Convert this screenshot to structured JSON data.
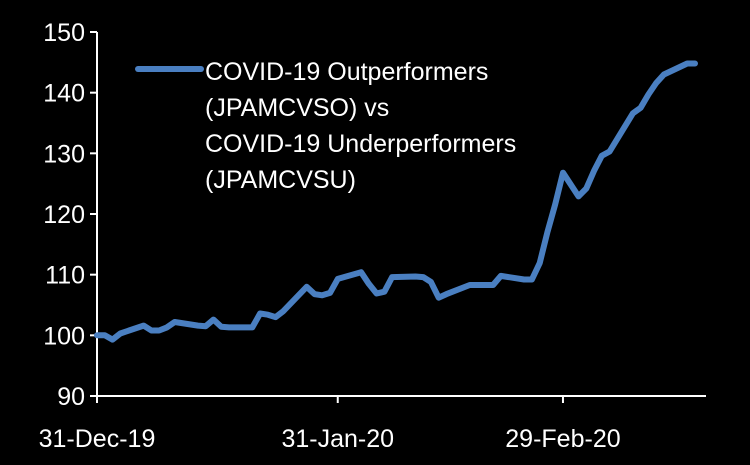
{
  "chart_data": {
    "type": "line",
    "title": "",
    "xlabel": "",
    "ylabel": "",
    "ylim": [
      90,
      150
    ],
    "y_ticks": [
      90,
      100,
      110,
      120,
      130,
      140,
      150
    ],
    "xlim": [
      "2019-12-31",
      "2020-03-17"
    ],
    "x_ticks": [
      {
        "date": "2019-12-31",
        "label": "31-Dec-19"
      },
      {
        "date": "2020-01-31",
        "label": "31-Jan-20"
      },
      {
        "date": "2020-02-29",
        "label": "29-Feb-20"
      }
    ],
    "grid": false,
    "legend": {
      "position": "top-left",
      "lines": [
        "COVID-19 Outperformers",
        "(JPAMCVSO) vs",
        "COVID-19 Underperformers",
        "(JPAMCVSU)"
      ]
    },
    "series": [
      {
        "name": "COVID-19 Outperformers (JPAMCVSO) vs COVID-19 Underperformers (JPAMCVSU)",
        "color": "#4a7fc1",
        "x": [
          "2019-12-31",
          "2020-01-01",
          "2020-01-02",
          "2020-01-03",
          "2020-01-06",
          "2020-01-07",
          "2020-01-08",
          "2020-01-09",
          "2020-01-10",
          "2020-01-13",
          "2020-01-14",
          "2020-01-15",
          "2020-01-16",
          "2020-01-17",
          "2020-01-20",
          "2020-01-21",
          "2020-01-22",
          "2020-01-23",
          "2020-01-24",
          "2020-01-27",
          "2020-01-28",
          "2020-01-29",
          "2020-01-30",
          "2020-01-31",
          "2020-02-03",
          "2020-02-04",
          "2020-02-05",
          "2020-02-06",
          "2020-02-07",
          "2020-02-10",
          "2020-02-11",
          "2020-02-12",
          "2020-02-13",
          "2020-02-14",
          "2020-02-17",
          "2020-02-18",
          "2020-02-19",
          "2020-02-20",
          "2020-02-21",
          "2020-02-24",
          "2020-02-25",
          "2020-02-26",
          "2020-02-27",
          "2020-02-28",
          "2020-02-29",
          "2020-03-02",
          "2020-03-03",
          "2020-03-04",
          "2020-03-05",
          "2020-03-06",
          "2020-03-09",
          "2020-03-10",
          "2020-03-11",
          "2020-03-12",
          "2020-03-13",
          "2020-03-16",
          "2020-03-17"
        ],
        "values": [
          100.0,
          100.0,
          99.3,
          100.3,
          101.6,
          100.8,
          100.8,
          101.3,
          102.2,
          101.6,
          101.5,
          102.6,
          101.4,
          101.3,
          101.3,
          103.6,
          103.4,
          103.0,
          104.0,
          108.0,
          106.8,
          106.6,
          107.0,
          109.3,
          110.4,
          108.5,
          106.9,
          107.2,
          109.6,
          109.7,
          109.6,
          108.8,
          106.2,
          106.8,
          108.3,
          108.3,
          108.3,
          108.3,
          109.8,
          109.2,
          109.2,
          111.9,
          117.0,
          121.6,
          126.8,
          122.9,
          124.2,
          127.1,
          129.6,
          130.3,
          136.6,
          137.5,
          139.7,
          141.6,
          143.0,
          144.8,
          144.8
        ]
      }
    ]
  }
}
